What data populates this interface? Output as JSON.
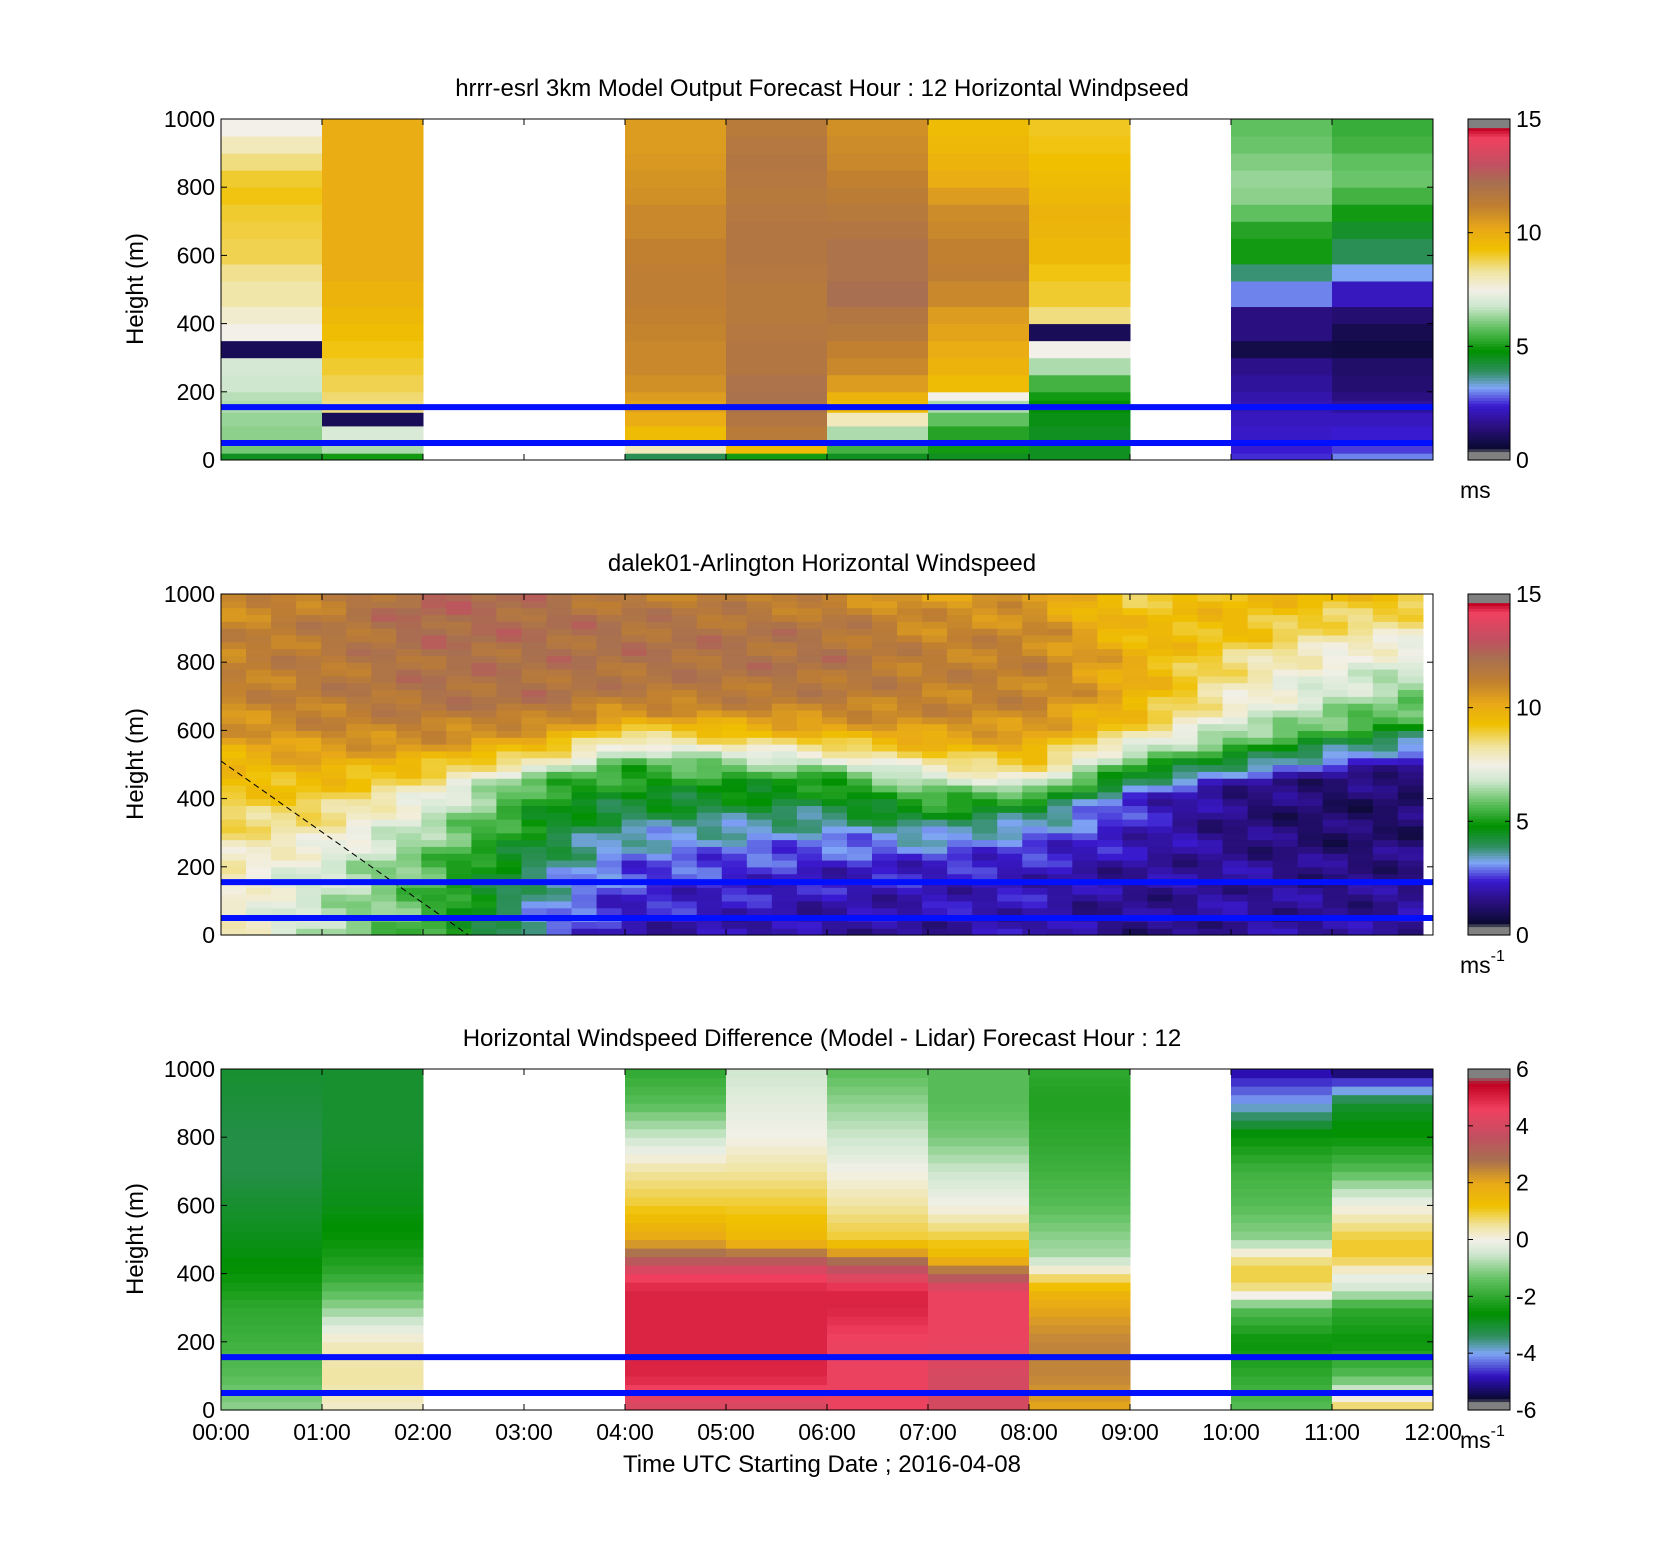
{
  "figure": {
    "xlabel": "Time UTC  Starting Date ; 2016-04-08",
    "x_ticks": [
      "00:00",
      "01:00",
      "02:00",
      "03:00",
      "04:00",
      "05:00",
      "06:00",
      "07:00",
      "08:00",
      "09:00",
      "10:00",
      "11:00",
      "12:00"
    ]
  },
  "chart_data": [
    {
      "type": "heatmap",
      "title": "hrrr-esrl 3km Model Output   Forecast Hour : 12 Horizontal Windpseed",
      "ylabel": "Height (m)",
      "y_ticks": [
        "0",
        "200",
        "400",
        "600",
        "800",
        "1000"
      ],
      "ylim": [
        0,
        1000
      ],
      "xlim_hours": [
        0,
        12
      ],
      "colorbar": {
        "ticks": [
          "0",
          "5",
          "10",
          "15"
        ],
        "clim": [
          0,
          15
        ],
        "unit": "ms",
        "unit_exp": ""
      },
      "reference_lines_m": [
        50,
        155
      ],
      "heights_m": [
        20,
        60,
        100,
        140,
        175,
        200,
        250,
        300,
        350,
        400,
        450,
        525,
        575,
        650,
        700,
        750,
        800,
        850,
        900,
        950,
        1000
      ],
      "columns": [
        {
          "t0": 0,
          "t1": 1,
          "values": [
            4.5,
            6,
            6.2,
            6.3,
            6.5,
            6.6,
            6.8,
            6.9,
            1.0,
            7.5,
            7.8,
            8.2,
            8.4,
            8.8,
            8.9,
            9.0,
            9.2,
            9.0,
            8.5,
            8.0,
            7.5
          ]
        },
        {
          "t0": 1,
          "t1": 2,
          "values": [
            5,
            6.5,
            7,
            1.0,
            8.5,
            8.6,
            8.8,
            9.0,
            9.2,
            9.4,
            9.6,
            9.8,
            10.0,
            10.0,
            10.0,
            10.0,
            10.0,
            10.0,
            10.0,
            10.0,
            10.0
          ]
        },
        null,
        null,
        {
          "t0": 4,
          "t1": 5,
          "values": [
            4,
            8,
            9.5,
            10,
            10.3,
            10.5,
            10.8,
            11.0,
            11.0,
            11.1,
            11.2,
            11.3,
            11.3,
            11.2,
            11.0,
            11.0,
            10.8,
            10.7,
            10.6,
            10.5,
            10.5
          ]
        },
        {
          "t0": 5,
          "t1": 6,
          "values": [
            5,
            9.5,
            11.5,
            11.8,
            12.0,
            12.1,
            12.0,
            11.8,
            11.8,
            11.7,
            11.6,
            11.6,
            11.7,
            11.8,
            11.8,
            11.7,
            11.6,
            11.7,
            11.8,
            11.7,
            11.5
          ]
        },
        {
          "t0": 6,
          "t1": 7,
          "values": [
            4.5,
            5.5,
            6.5,
            8.0,
            9.5,
            9.8,
            10.5,
            11.0,
            11.2,
            11.6,
            11.8,
            12.2,
            12.0,
            12.0,
            11.8,
            11.6,
            11.4,
            11.2,
            11.0,
            10.9,
            10.8
          ]
        },
        {
          "t0": 7,
          "t1": 8,
          "values": [
            4.5,
            5,
            5.2,
            5.8,
            6.5,
            7.5,
            9.5,
            9.8,
            10.0,
            10.3,
            10.5,
            11.0,
            11.3,
            11.2,
            11.0,
            10.9,
            10.5,
            10.0,
            9.8,
            9.6,
            9.5
          ]
        },
        {
          "t0": 8,
          "t1": 9,
          "values": [
            4.5,
            4.5,
            4.5,
            4.6,
            4.8,
            5.0,
            5.5,
            6.5,
            7.5,
            1.0,
            8.5,
            9.0,
            9.2,
            9.6,
            9.7,
            9.8,
            9.6,
            9.5,
            9.3,
            9.2,
            9.1
          ]
        },
        null,
        {
          "t0": 10,
          "t1": 11,
          "values": [
            2.5,
            2.4,
            2.3,
            2.2,
            2.1,
            2.0,
            1.8,
            1.6,
            0.8,
            1.5,
            1.5,
            3.0,
            3.8,
            5.0,
            5.2,
            5.8,
            6.2,
            6.3,
            6.1,
            5.9,
            5.8
          ]
        },
        {
          "t0": 11,
          "t1": 12,
          "values": [
            3.0,
            2.6,
            2.4,
            2.2,
            1.8,
            1.5,
            1.3,
            1.2,
            0.7,
            0.9,
            1.3,
            2.2,
            3.2,
            4.0,
            4.4,
            5.0,
            5.5,
            5.9,
            5.8,
            5.5,
            5.4
          ]
        }
      ]
    },
    {
      "type": "heatmap",
      "title": "dalek01-Arlington  Horizontal Windspeed",
      "ylabel": "Height (m)",
      "y_ticks": [
        "0",
        "200",
        "400",
        "600",
        "800",
        "1000"
      ],
      "ylim": [
        0,
        1000
      ],
      "xlim_hours": [
        0,
        12
      ],
      "colorbar": {
        "ticks": [
          "0",
          "5",
          "10",
          "15"
        ],
        "clim": [
          0,
          15
        ],
        "unit": "ms",
        "unit_exp": "-1"
      },
      "reference_lines_m": [
        50,
        155
      ],
      "diagonal_line": [
        [
          0,
          510
        ],
        [
          2.45,
          0
        ]
      ],
      "profile_heights_m": [
        0,
        200,
        300,
        400,
        450,
        500,
        550,
        600,
        650,
        700,
        800,
        900,
        1000
      ],
      "profiles": [
        {
          "t": 0,
          "values": [
            8,
            8,
            8.5,
            9,
            9.3,
            9.5,
            10,
            10.5,
            10.8,
            11,
            11.2,
            11,
            10.8
          ]
        },
        {
          "t": 1,
          "values": [
            6.5,
            7,
            8,
            9,
            9.5,
            10,
            10.5,
            11,
            11.2,
            11.5,
            11.5,
            11.6,
            11.2
          ]
        },
        {
          "t": 2,
          "values": [
            5.5,
            5.8,
            6.5,
            7.5,
            8.5,
            9.5,
            10.5,
            11.2,
            11.5,
            12,
            12,
            12.3,
            12.5
          ]
        },
        {
          "t": 3.2,
          "values": [
            3,
            3.8,
            4.5,
            5,
            5.5,
            7.5,
            9.5,
            10.5,
            11.5,
            12,
            12,
            12.2,
            12
          ]
        },
        {
          "t": 4,
          "values": [
            2,
            2.8,
            3.5,
            4.5,
            5,
            5.5,
            7,
            9,
            10.5,
            11.5,
            12,
            12,
            11.5
          ]
        },
        {
          "t": 6,
          "values": [
            1.8,
            2.3,
            3.2,
            4.5,
            5,
            6.5,
            8.5,
            10,
            11,
            11.5,
            12,
            11.8,
            11
          ]
        },
        {
          "t": 7,
          "values": [
            1.8,
            2.3,
            3.5,
            5.5,
            6.5,
            8,
            9.5,
            10.5,
            11,
            11.2,
            11.3,
            11,
            10.5
          ]
        },
        {
          "t": 8,
          "values": [
            2,
            2.2,
            3,
            5,
            7.5,
            9,
            10,
            10.5,
            11,
            11.2,
            11.3,
            11,
            10.5
          ]
        },
        {
          "t": 9,
          "values": [
            1.5,
            1.8,
            2.3,
            2.5,
            4,
            5.5,
            7,
            9,
            9.5,
            10,
            10,
            9.5,
            9
          ]
        },
        {
          "t": 10,
          "values": [
            1.8,
            1.8,
            1.5,
            1.5,
            2,
            4,
            5.5,
            6.5,
            7.5,
            8,
            8.5,
            9.5,
            9.5
          ]
        },
        {
          "t": 11,
          "values": [
            1.8,
            1.5,
            1.2,
            1.2,
            1.3,
            2.5,
            4,
            5.5,
            6.2,
            6.8,
            7.5,
            8.5,
            9.5
          ]
        },
        {
          "t": 11.9,
          "values": [
            2,
            1.5,
            1.3,
            1.2,
            1.4,
            1.6,
            3,
            4.5,
            5.5,
            6,
            7,
            8,
            9.5
          ]
        }
      ]
    },
    {
      "type": "heatmap",
      "title": "Horizontal Windspeed Difference (Model - Lidar) Forecast Hour : 12",
      "ylabel": "Height (m)",
      "y_ticks": [
        "0",
        "200",
        "400",
        "600",
        "800",
        "1000"
      ],
      "ylim": [
        0,
        1000
      ],
      "xlim_hours": [
        0,
        12
      ],
      "colorbar": {
        "ticks": [
          "-6",
          "-4",
          "-2",
          "0",
          "2",
          "4",
          "6"
        ],
        "clim": [
          -6,
          6
        ],
        "unit": "ms",
        "unit_exp": "-1"
      },
      "reference_lines_m": [
        50,
        155
      ],
      "profile_heights_m": [
        0,
        100,
        200,
        300,
        350,
        400,
        450,
        500,
        600,
        700,
        800,
        900,
        1000
      ],
      "columns": [
        {
          "t0": 0,
          "t1": 1,
          "values": [
            -1,
            -1.5,
            -1.8,
            -2,
            -2.3,
            -2.5,
            -2.7,
            -2.8,
            -3,
            -3.2,
            -3.2,
            -3.1,
            -3
          ]
        },
        {
          "t0": 1,
          "t1": 2,
          "values": [
            0.2,
            0.5,
            0.3,
            -1,
            -1.5,
            -2,
            -2.3,
            -2.5,
            -2.8,
            -2.9,
            -3,
            -3,
            -3
          ]
        },
        null,
        null,
        {
          "t0": 4,
          "t1": 5,
          "values": [
            4,
            5,
            5,
            5,
            5,
            4.5,
            3,
            2,
            1,
            0.5,
            -0.5,
            -1.5,
            -2
          ]
        },
        {
          "t0": 5,
          "t1": 6,
          "values": [
            4,
            5,
            5,
            5,
            5,
            4.5,
            3,
            1.5,
            1,
            0.5,
            0,
            -0.2,
            -0.5
          ]
        },
        {
          "t0": 6,
          "t1": 7,
          "values": [
            4.5,
            4.5,
            4.5,
            5,
            5,
            4,
            2.5,
            1,
            0.5,
            0,
            -0.5,
            -1,
            -1.5
          ]
        },
        {
          "t0": 7,
          "t1": 8,
          "values": [
            4,
            4,
            4.5,
            4.5,
            4.5,
            3,
            1.5,
            1,
            0,
            -0.5,
            -1.2,
            -1.5,
            -1.5
          ]
        },
        {
          "t0": 8,
          "t1": 9,
          "values": [
            2,
            2.5,
            2.5,
            2,
            1.5,
            0.5,
            -0.8,
            -1,
            -1.5,
            -1.8,
            -2,
            -2.2,
            -2
          ]
        },
        null,
        {
          "t0": 10,
          "t1": 11,
          "values": [
            -1.5,
            -2,
            -2.5,
            -1.5,
            0.5,
            1,
            0.5,
            -1,
            -1.5,
            -1.8,
            -2.5,
            -4,
            -5
          ]
        },
        {
          "t0": 11,
          "t1": 12,
          "values": [
            1,
            -1.5,
            -2.5,
            -2,
            -0.5,
            0,
            1,
            1,
            0,
            -1.5,
            -2.5,
            -3,
            -5.5
          ]
        }
      ]
    }
  ]
}
